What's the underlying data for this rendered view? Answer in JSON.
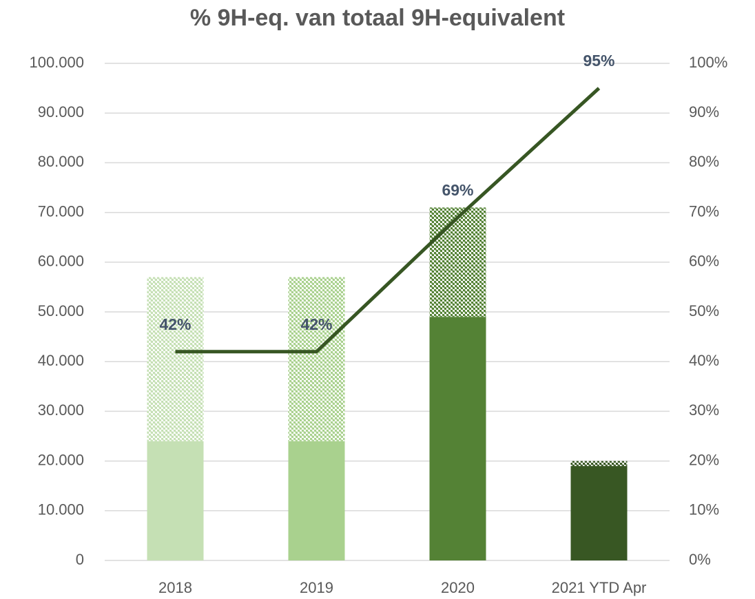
{
  "chart_data": {
    "type": "bar",
    "title": "% 9H-eq. van totaal 9H-equivalent",
    "categories": [
      "2018",
      "2019",
      "2020",
      "2021 YTD Apr"
    ],
    "series": [
      {
        "values": [
          24000,
          24000,
          49000,
          19000
        ],
        "colors": [
          "#c5e0b4",
          "#a9d18e",
          "#548235",
          "#385723"
        ],
        "pattern": false
      },
      {
        "values": [
          33000,
          33000,
          22000,
          1000
        ],
        "colors": [
          "#c5e0b4",
          "#a9d18e",
          "#548235",
          "#385723"
        ],
        "pattern": true
      },
      {
        "type": "line",
        "axis": "y2",
        "color": "#375623",
        "values": [
          42,
          42,
          69,
          95
        ],
        "value_labels": [
          "42%",
          "42%",
          "69%",
          "95%"
        ]
      }
    ],
    "stacked": true,
    "ylim": [
      0,
      100000
    ],
    "yticks": [
      0,
      {
        "value": 10000,
        "label": "10.000"
      },
      {
        "value": 20000,
        "label": "20.000"
      },
      {
        "value": 30000,
        "label": "30.000"
      },
      {
        "value": 40000,
        "label": "40.000"
      },
      {
        "value": 50000,
        "label": "50.000"
      },
      {
        "value": 60000,
        "label": "60.000"
      },
      {
        "value": 70000,
        "label": "70.000"
      },
      {
        "value": 80000,
        "label": "80.000"
      },
      {
        "value": 90000,
        "label": "90.000"
      },
      {
        "value": 100000,
        "label": "100.000"
      }
    ],
    "y2lim": [
      0,
      100
    ],
    "y2ticks": [
      {
        "value": 0,
        "label": "0%"
      },
      {
        "value": 10,
        "label": "10%"
      },
      {
        "value": 20,
        "label": "20%"
      },
      {
        "value": 30,
        "label": "30%"
      },
      {
        "value": 40,
        "label": "40%"
      },
      {
        "value": 50,
        "label": "50%"
      },
      {
        "value": 60,
        "label": "60%"
      },
      {
        "value": 70,
        "label": "70%"
      },
      {
        "value": 80,
        "label": "80%"
      },
      {
        "value": 90,
        "label": "90%"
      },
      {
        "value": 100,
        "label": "100%"
      }
    ],
    "grid": true
  }
}
